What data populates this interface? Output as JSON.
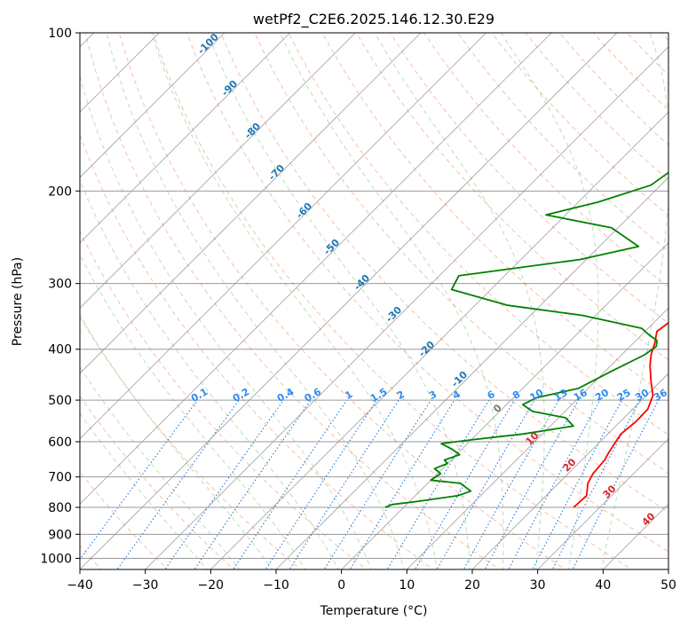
{
  "chart_data": {
    "type": "line",
    "title": "wetPf2_C2E6.2025.146.12.30.E29",
    "xlabel": "Temperature (°C)",
    "ylabel": "Pressure (hPa)",
    "xlim": [
      -40,
      50
    ],
    "ylim": [
      1050,
      100
    ],
    "y_scale": "log",
    "grid": true,
    "x_ticks": [
      -40,
      -30,
      -20,
      -10,
      0,
      10,
      20,
      30,
      40,
      50
    ],
    "y_ticks": [
      100,
      200,
      300,
      400,
      500,
      600,
      700,
      800,
      900,
      1000
    ],
    "x_tick_labels": [
      "−40",
      "−30",
      "−20",
      "−10",
      "0",
      "10",
      "20",
      "30",
      "40",
      "50"
    ],
    "y_tick_labels": [
      "100",
      "200",
      "300",
      "400",
      "500",
      "600",
      "700",
      "800",
      "900",
      "1000"
    ],
    "series": [
      {
        "color": "#ff0000",
        "points": [
          [
            26.0,
            800
          ],
          [
            26.2,
            760
          ],
          [
            24.5,
            720
          ],
          [
            23.8,
            690
          ],
          [
            23.5,
            650
          ],
          [
            23.0,
            630
          ],
          [
            22.0,
            580
          ],
          [
            22.4,
            550
          ],
          [
            22.3,
            520
          ],
          [
            21.0,
            490
          ],
          [
            18.5,
            460
          ],
          [
            16.0,
            430
          ],
          [
            14.5,
            410
          ],
          [
            13.3,
            390
          ],
          [
            11.8,
            370
          ],
          [
            12.5,
            350
          ],
          [
            13.0,
            330
          ],
          [
            11.0,
            300
          ],
          [
            8.5,
            260
          ],
          [
            7.8,
            240
          ],
          [
            6.2,
            215
          ],
          [
            3.0,
            195
          ],
          [
            -0.5,
            178
          ],
          [
            -3.2,
            160
          ],
          [
            -4.0,
            150
          ],
          [
            -4.0,
            140
          ],
          [
            -3.9,
            130
          ],
          [
            -4.5,
            120
          ],
          [
            -4.3,
            110
          ],
          [
            -3.5,
            100
          ]
        ]
      },
      {
        "color": "#008000",
        "points": [
          [
            -2.8,
            800
          ],
          [
            -2.2,
            790
          ],
          [
            1.0,
            780
          ],
          [
            6.5,
            760
          ],
          [
            7.8,
            745
          ],
          [
            5.0,
            720
          ],
          [
            0.0,
            710
          ],
          [
            0.5,
            690
          ],
          [
            -1.2,
            675
          ],
          [
            0.0,
            660
          ],
          [
            -1.0,
            650
          ],
          [
            0.5,
            635
          ],
          [
            -1.5,
            620
          ],
          [
            -4.0,
            605
          ],
          [
            0.0,
            595
          ],
          [
            7.0,
            580
          ],
          [
            13.5,
            560
          ],
          [
            11.0,
            540
          ],
          [
            5.0,
            525
          ],
          [
            2.5,
            510
          ],
          [
            3.5,
            495
          ],
          [
            8.5,
            475
          ],
          [
            11.0,
            440
          ],
          [
            13.5,
            410
          ],
          [
            14.0,
            395
          ],
          [
            13.2,
            385
          ],
          [
            11.0,
            375
          ],
          [
            9.0,
            365
          ],
          [
            -2.0,
            345
          ],
          [
            -15.0,
            330
          ],
          [
            -26.0,
            308
          ],
          [
            -27.0,
            290
          ],
          [
            -11.0,
            270
          ],
          [
            -4.0,
            255
          ],
          [
            -11.0,
            235
          ],
          [
            -23.0,
            222
          ],
          [
            -17.0,
            210
          ],
          [
            -11.5,
            195
          ],
          [
            -10.0,
            175
          ],
          [
            -5.0,
            160
          ],
          [
            -6.0,
            145
          ],
          [
            -5.5,
            135
          ],
          [
            -4.0,
            120
          ],
          [
            -2.5,
            110
          ],
          [
            -0.7,
            100
          ]
        ]
      }
    ],
    "dry_adiabat_labels": [
      "-100",
      "-90",
      "-80",
      "-70",
      "-60",
      "-50",
      "-40",
      "-30",
      "-20",
      "-10",
      "0",
      "10",
      "20",
      "30",
      "40"
    ],
    "mixing_ratio_labels": [
      "0.1",
      "0.2",
      "0.4",
      "0.6",
      "1",
      "1.5",
      "2",
      "3",
      "4",
      "6",
      "8",
      "10",
      "13",
      "16",
      "20",
      "25",
      "30",
      "36"
    ],
    "mixing_ratio_values": [
      0.1,
      0.2,
      0.4,
      0.6,
      1,
      1.5,
      2,
      3,
      4,
      6,
      8,
      10,
      13,
      16,
      20,
      25,
      30,
      36
    ]
  }
}
